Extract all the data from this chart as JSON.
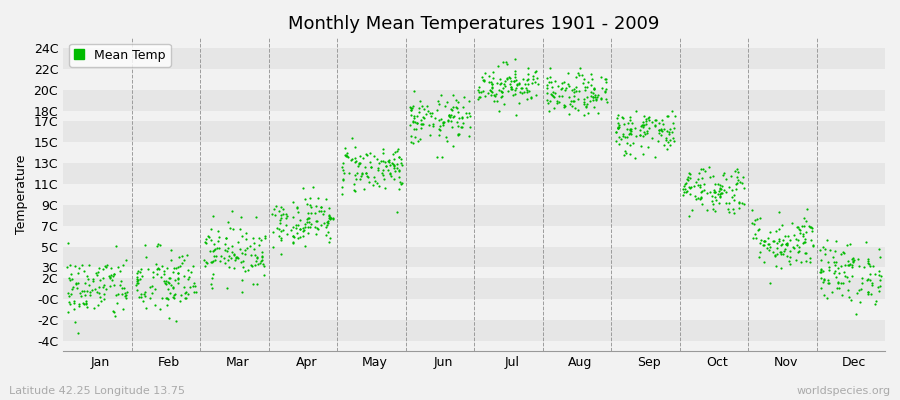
{
  "title": "Monthly Mean Temperatures 1901 - 2009",
  "ylabel": "Temperature",
  "subtitle_left": "Latitude 42.25 Longitude 13.75",
  "subtitle_right": "worldspecies.org",
  "dot_color": "#00bb00",
  "background_color": "#f2f2f2",
  "stripe_colors": [
    "#e6e6e6",
    "#f2f2f2"
  ],
  "yticks": [
    -4,
    -2,
    0,
    2,
    3,
    5,
    7,
    9,
    11,
    13,
    15,
    17,
    18,
    20,
    22,
    24
  ],
  "ylim": [
    -5,
    25
  ],
  "months": [
    "Jan",
    "Feb",
    "Mar",
    "Apr",
    "May",
    "Jun",
    "Jul",
    "Aug",
    "Sep",
    "Oct",
    "Nov",
    "Dec"
  ],
  "monthly_means": [
    1.0,
    1.5,
    4.5,
    7.5,
    12.5,
    17.0,
    20.5,
    19.5,
    16.0,
    10.5,
    5.5,
    2.5
  ],
  "monthly_stds": [
    1.6,
    1.7,
    1.4,
    1.2,
    1.2,
    1.2,
    1.0,
    1.0,
    1.1,
    1.2,
    1.4,
    1.5
  ],
  "n_years": 109,
  "seed": 42,
  "marker_size": 2.5,
  "title_fontsize": 13,
  "axis_label_fontsize": 9,
  "tick_fontsize": 9,
  "footer_fontsize": 8,
  "legend_fontsize": 9
}
